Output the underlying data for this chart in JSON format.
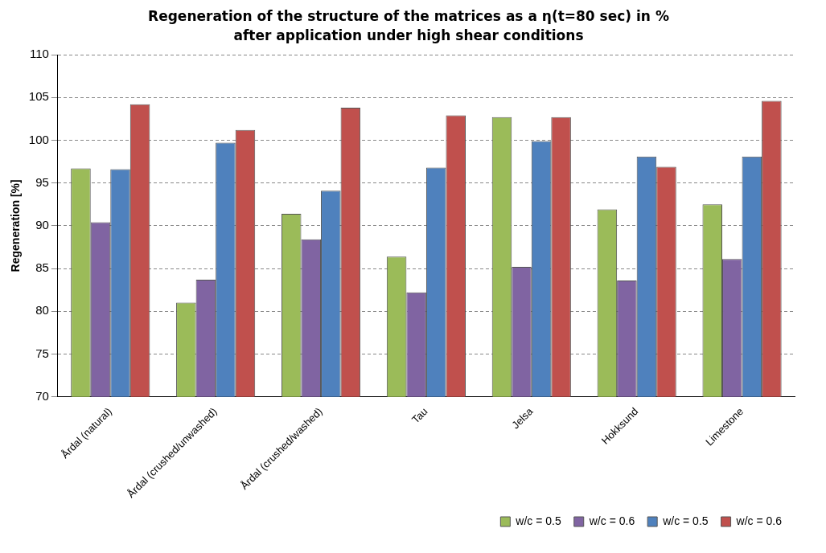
{
  "chart_data": {
    "type": "bar",
    "title": "Regeneration of the structure of the matrices as a η(t=80 sec) in % after application under high shear conditions",
    "ylabel": "Regeneration [%]",
    "categories": [
      "Årdal (natural)",
      "Årdal (crushed/unwashed)",
      "Årdal (crushed/washed)",
      "Tau",
      "Jelsa",
      "Hokksund",
      "Limestone"
    ],
    "series": [
      {
        "name": "w/c = 0.5",
        "color": "#9bbb59",
        "values": [
          96.7,
          81.0,
          91.4,
          86.4,
          102.7,
          91.9,
          92.5
        ]
      },
      {
        "name": "w/c = 0.6",
        "color": "#8064a2",
        "values": [
          90.4,
          83.7,
          88.4,
          82.2,
          85.2,
          83.6,
          86.1
        ]
      },
      {
        "name": "w/c = 0.5",
        "color": "#4f81bd",
        "values": [
          96.6,
          99.7,
          94.1,
          96.8,
          99.9,
          98.1,
          98.1
        ]
      },
      {
        "name": "w/c = 0.6",
        "color": "#c0504d",
        "values": [
          104.2,
          101.2,
          103.8,
          102.9,
          102.7,
          96.9,
          104.6
        ]
      }
    ],
    "ylim": [
      70,
      110
    ],
    "yticks": [
      70,
      75,
      80,
      85,
      90,
      95,
      100,
      105,
      110
    ],
    "grid": "y",
    "legend": "bottom right"
  }
}
